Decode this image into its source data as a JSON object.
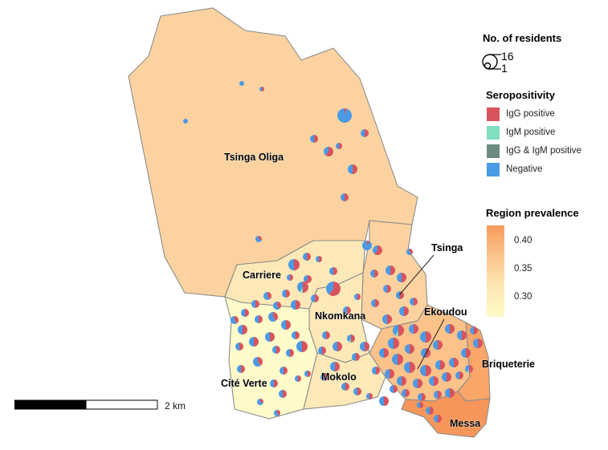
{
  "legend": {
    "size_title": "No. of residents",
    "size_max": "16",
    "size_min": "1",
    "sero_title": "Seropositivity",
    "categories": [
      {
        "label": "IgG positive",
        "color": "#d9535c"
      },
      {
        "label": "IgM positive",
        "color": "#7fdfc0"
      },
      {
        "label": "IgG & IgM positive",
        "color": "#6b8a82"
      },
      {
        "label": "Negative",
        "color": "#4a9ae6"
      }
    ],
    "prevalence_title": "Region prevalence",
    "prevalence_ticks": [
      "0.40",
      "0.35",
      "0.30"
    ]
  },
  "regions": [
    {
      "name": "Tsinga Oliga",
      "color": "#fcd3a0"
    },
    {
      "name": "Tsinga",
      "color": "#fcd3a0"
    },
    {
      "name": "Carriere",
      "color": "#fde9b8"
    },
    {
      "name": "Nkomkana",
      "color": "#fde9b8"
    },
    {
      "name": "Cité Verte",
      "color": "#fffac9"
    },
    {
      "name": "Mokolo",
      "color": "#fde9b8"
    },
    {
      "name": "Ekoudou",
      "color": "#fbc28a"
    },
    {
      "name": "Briqueterie",
      "color": "#f9a66a"
    },
    {
      "name": "Messa",
      "color": "#f7965a"
    }
  ],
  "scale": {
    "label": "2 km"
  }
}
